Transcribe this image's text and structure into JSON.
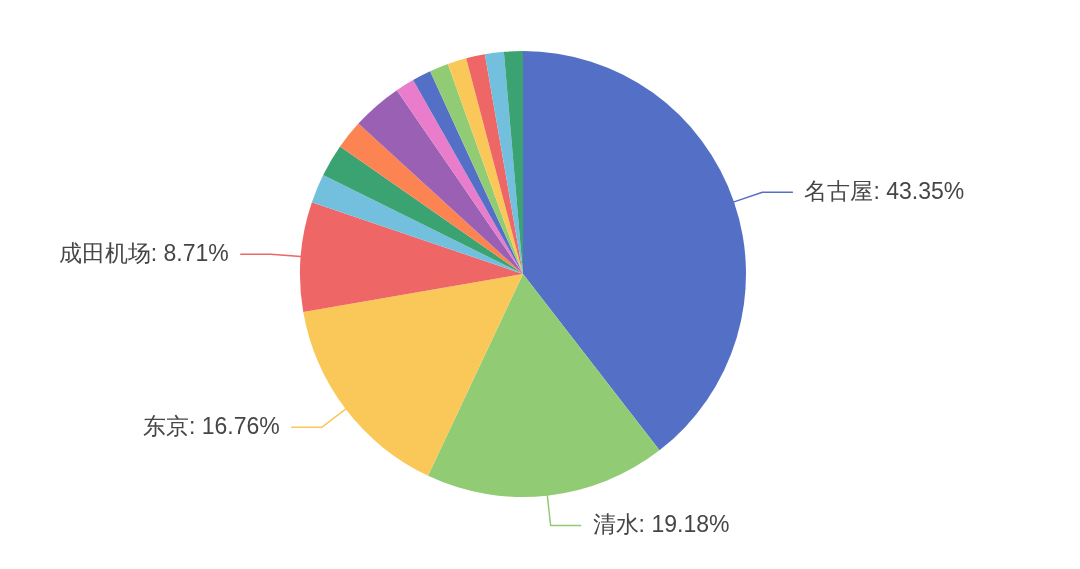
{
  "chart_data": {
    "type": "pie",
    "categories": [
      "名古屋",
      "清水",
      "东京",
      "成田机场",
      null,
      null,
      null,
      null,
      null,
      null,
      null,
      null,
      null,
      null,
      null
    ],
    "values": [
      43.35,
      19.18,
      16.76,
      8.71,
      2.3,
      2.6,
      2.3,
      4.0,
      1.5,
      1.5,
      1.5,
      1.5,
      1.5,
      1.5,
      1.5
    ],
    "colors": [
      "#5470c6",
      "#91cc75",
      "#fac858",
      "#ee6666",
      "#73c0de",
      "#3ba272",
      "#fc8452",
      "#9a60b4",
      "#ea7ccc",
      "#5470c6",
      "#91cc75",
      "#fac858",
      "#ee6666",
      "#73c0de",
      "#3ba272"
    ],
    "value_labels": [
      "43.35%",
      "19.18%",
      "16.76%",
      "8.71%",
      null,
      null,
      null,
      null,
      null,
      null,
      null,
      null,
      null,
      null,
      null
    ]
  }
}
